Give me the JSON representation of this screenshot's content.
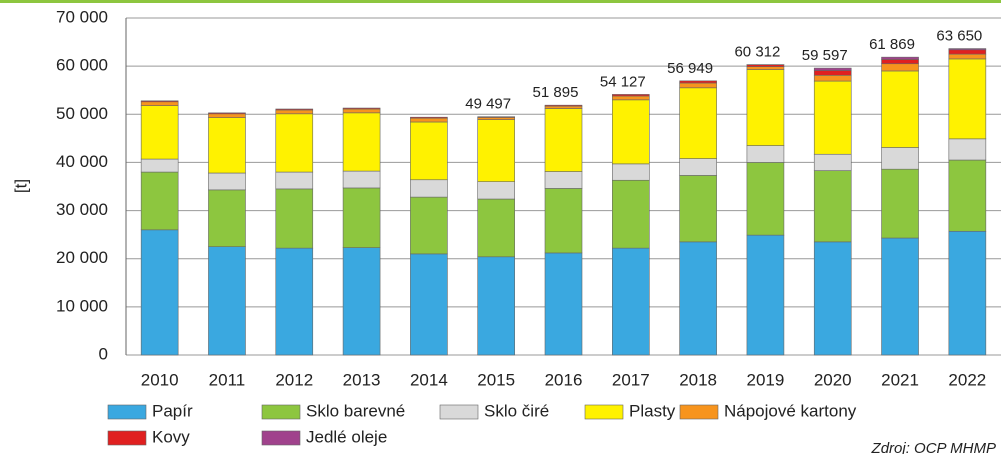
{
  "chart_data": {
    "type": "stacked_bar",
    "y_label": "[t]",
    "source": "Zdroj: OCP MHMP",
    "categories": [
      "2010",
      "2011",
      "2012",
      "2013",
      "2014",
      "2015",
      "2016",
      "2017",
      "2018",
      "2019",
      "2020",
      "2021",
      "2022"
    ],
    "series": [
      {
        "name": "Papír",
        "color": "#3aa8e0",
        "values": [
          26000,
          22500,
          22200,
          22300,
          21000,
          20400,
          21200,
          22200,
          23500,
          24900,
          23500,
          24300,
          25700
        ]
      },
      {
        "name": "Sklo barevné",
        "color": "#8dc63f",
        "values": [
          12000,
          11800,
          12300,
          12400,
          11800,
          12000,
          13400,
          14100,
          13800,
          15100,
          14800,
          14300,
          14800
        ]
      },
      {
        "name": "Sklo čiré",
        "color": "#d9d9d9",
        "values": [
          2700,
          3500,
          3500,
          3500,
          3600,
          3600,
          3500,
          3400,
          3500,
          3500,
          3400,
          4500,
          4400
        ]
      },
      {
        "name": "Plasty",
        "color": "#fff200",
        "values": [
          11100,
          11500,
          12100,
          12100,
          12000,
          12900,
          13100,
          13300,
          14700,
          15800,
          15200,
          15900,
          16600
        ]
      },
      {
        "name": "Nápojové kartony",
        "color": "#f7941d",
        "values": [
          800,
          800,
          800,
          800,
          800,
          450,
          500,
          800,
          1000,
          600,
          1200,
          1500,
          1000
        ]
      },
      {
        "name": "Kovy",
        "color": "#e02020",
        "values": [
          200,
          200,
          200,
          200,
          200,
          147,
          195,
          327,
          449,
          400,
          1000,
          900,
          900
        ]
      },
      {
        "name": "Jedlé oleje",
        "color": "#a0428c",
        "values": [
          null,
          null,
          null,
          null,
          null,
          null,
          null,
          null,
          null,
          12,
          497,
          469,
          250
        ]
      }
    ],
    "totals": [
      null,
      null,
      null,
      null,
      null,
      49497,
      51895,
      54127,
      56949,
      60312,
      59597,
      61869,
      63650
    ],
    "total_labels": [
      null,
      null,
      null,
      null,
      null,
      "49 497",
      "51 895",
      "54 127",
      "56 949",
      "60 312",
      "59 597",
      "61 869",
      "63 650"
    ],
    "ylim": [
      0,
      70000
    ],
    "yticks": [
      {
        "value": 0,
        "label": "0"
      },
      {
        "value": 10000,
        "label": "10 000"
      },
      {
        "value": 20000,
        "label": "20 000"
      },
      {
        "value": 30000,
        "label": "30 000"
      },
      {
        "value": 40000,
        "label": "40 000"
      },
      {
        "value": 50000,
        "label": "50 000"
      },
      {
        "value": 60000,
        "label": "60 000"
      },
      {
        "value": 70000,
        "label": "70 000"
      }
    ],
    "grid": true
  }
}
